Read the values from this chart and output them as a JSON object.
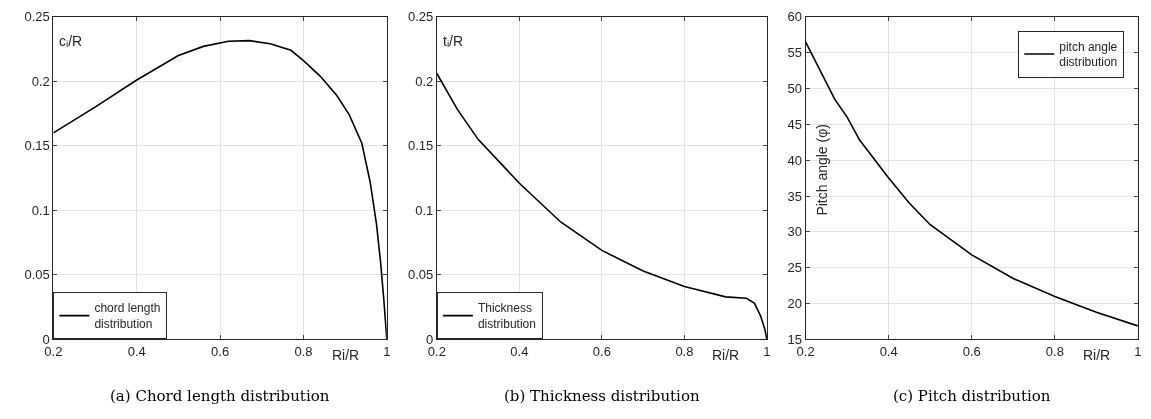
{
  "chart_data": [
    {
      "type": "line",
      "title": "(a) Chord length distribution",
      "xlabel": "Ri/R",
      "ylabel": "cᵢ/R",
      "xlim": [
        0.2,
        1
      ],
      "ylim": [
        0,
        0.25
      ],
      "xticks": [
        0.2,
        0.4,
        0.6,
        0.8,
        1
      ],
      "yticks": [
        0,
        0.05,
        0.1,
        0.15,
        0.2,
        0.25
      ],
      "grid": true,
      "legend": "bottom left",
      "series": [
        {
          "name": "chord length\ndistribution",
          "color": "#000000",
          "x": [
            0.2,
            0.3,
            0.4,
            0.5,
            0.56,
            0.62,
            0.67,
            0.72,
            0.77,
            0.8,
            0.84,
            0.88,
            0.91,
            0.94,
            0.96,
            0.975,
            0.985,
            0.993,
            1.0
          ],
          "values": [
            0.16,
            0.18,
            0.201,
            0.22,
            0.227,
            0.231,
            0.2315,
            0.229,
            0.224,
            0.216,
            0.204,
            0.189,
            0.174,
            0.152,
            0.122,
            0.09,
            0.06,
            0.03,
            0.0
          ]
        }
      ]
    },
    {
      "type": "line",
      "title": "(b) Thickness distribution",
      "xlabel": "Ri/R",
      "ylabel": "tᵢ/R",
      "xlim": [
        0.2,
        1
      ],
      "ylim": [
        0,
        0.25
      ],
      "xticks": [
        0.2,
        0.4,
        0.6,
        0.8,
        1
      ],
      "yticks": [
        0,
        0.05,
        0.1,
        0.15,
        0.2,
        0.25
      ],
      "grid": true,
      "legend": "bottom left",
      "series": [
        {
          "name": "Thickness\ndistribution",
          "color": "#000000",
          "x": [
            0.2,
            0.25,
            0.3,
            0.4,
            0.5,
            0.6,
            0.7,
            0.8,
            0.9,
            0.95,
            0.97,
            0.985,
            0.995,
            1.0
          ],
          "values": [
            0.206,
            0.178,
            0.155,
            0.121,
            0.091,
            0.069,
            0.053,
            0.041,
            0.033,
            0.032,
            0.028,
            0.018,
            0.008,
            0.0
          ]
        }
      ]
    },
    {
      "type": "line",
      "title": "(c) Pitch distribution",
      "xlabel": "Ri/R",
      "ylabel": "Pitch angle (φ)",
      "xlim": [
        0.2,
        1
      ],
      "ylim": [
        15,
        60
      ],
      "xticks": [
        0.2,
        0.4,
        0.6,
        0.8,
        1
      ],
      "yticks": [
        15,
        20,
        25,
        30,
        35,
        40,
        45,
        50,
        55,
        60
      ],
      "grid": true,
      "legend": "top right",
      "series": [
        {
          "name": "pitch angle\ndistribution",
          "color": "#000000",
          "x": [
            0.2,
            0.27,
            0.3,
            0.33,
            0.4,
            0.45,
            0.5,
            0.6,
            0.7,
            0.8,
            0.9,
            1.0
          ],
          "values": [
            56.5,
            48.5,
            46,
            42.8,
            37.5,
            34,
            31,
            26.8,
            23.5,
            21,
            18.8,
            16.9
          ]
        }
      ]
    }
  ]
}
